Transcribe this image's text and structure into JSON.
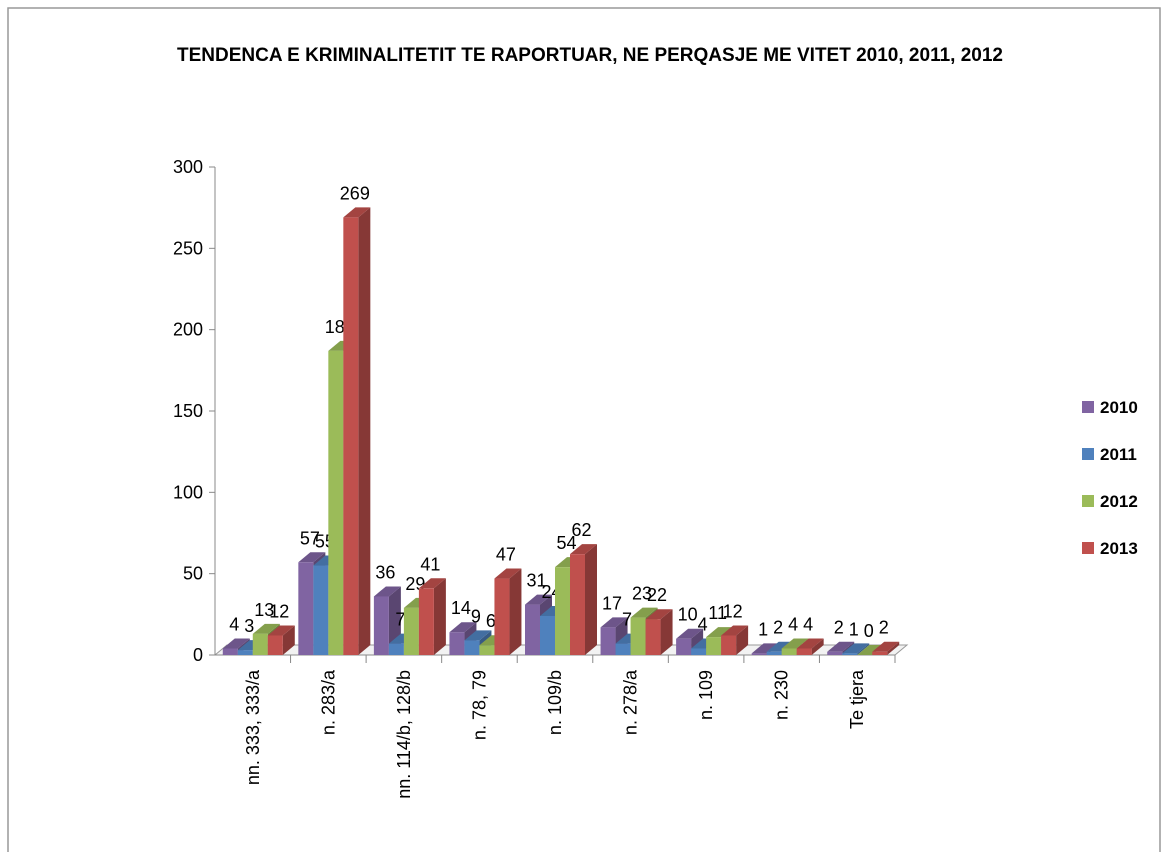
{
  "chart_data": {
    "type": "bar3d",
    "title": "TENDENCA E KRIMINALITETIT TE RAPORTUAR, NE PERQASJE ME VITET 2010, 2011, 2012",
    "categories": [
      "nn. 333, 333/a",
      "n. 283/a",
      "nn. 114/b, 128/b",
      "n. 78, 79",
      "n. 109/b",
      "n. 278/a",
      "n. 109",
      "n. 230",
      "Te tjera"
    ],
    "series": [
      {
        "name": "2010",
        "color": "#8064a2",
        "values": [
          4,
          57,
          36,
          14,
          31,
          17,
          10,
          1,
          2
        ]
      },
      {
        "name": "2011",
        "color": "#4f81bd",
        "values": [
          3,
          55,
          7,
          9,
          24,
          7,
          4,
          2,
          1
        ]
      },
      {
        "name": "2012",
        "color": "#9bbb59",
        "values": [
          13,
          187,
          29,
          6,
          54,
          23,
          11,
          4,
          0
        ]
      },
      {
        "name": "2013",
        "color": "#c0504d",
        "values": [
          12,
          269,
          41,
          47,
          62,
          22,
          12,
          4,
          2
        ]
      }
    ],
    "ylim": [
      0,
      300
    ],
    "yticks": [
      0,
      50,
      100,
      150,
      200,
      250,
      300
    ],
    "legend": "right"
  }
}
